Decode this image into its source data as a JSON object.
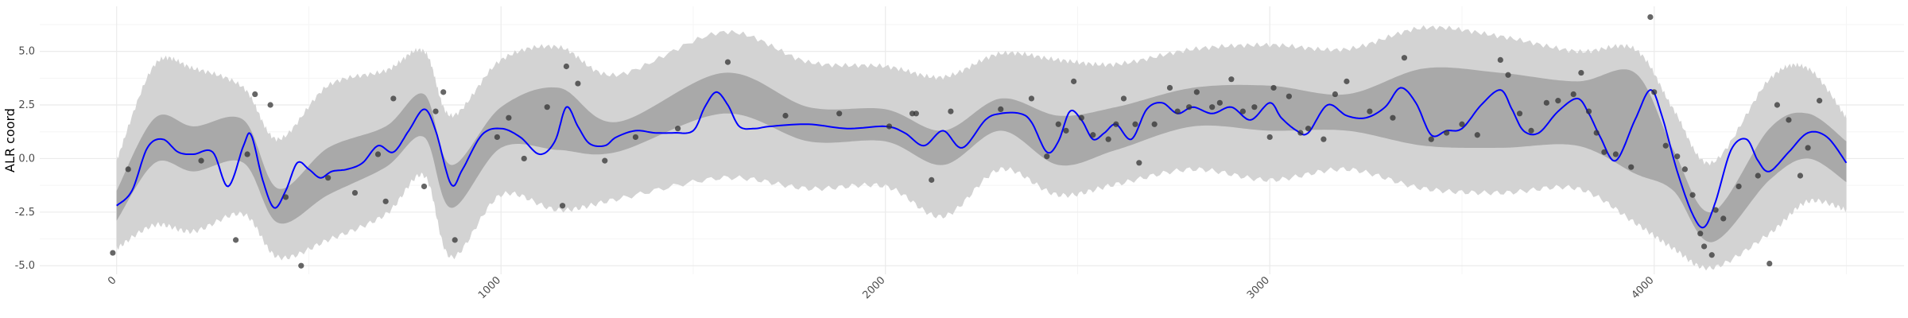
{
  "chart_data": {
    "type": "line",
    "title": "",
    "xlabel": "",
    "ylabel": "ALR coord",
    "xlim": [
      -200,
      4650
    ],
    "ylim": [
      -5.4,
      7.1
    ],
    "x_ticks": [
      0,
      1000,
      2000,
      3000,
      4000
    ],
    "y_ticks": [
      -5.0,
      -2.5,
      0.0,
      2.5,
      5.0
    ],
    "y_tick_labels": [
      "-5.0",
      "-2.5",
      "0.0",
      "2.5",
      "5.0"
    ],
    "grid": true,
    "legend": "none",
    "colors": {
      "mean": "#0000ff",
      "inner_band": "#a9a9a9",
      "outer_band": "#d3d3d3",
      "points": "#333333",
      "grid_major": "#ebebeb",
      "grid_minor": "#f5f5f5"
    },
    "series": [
      {
        "kind": "mean",
        "x": [
          0,
          40,
          80,
          120,
          160,
          200,
          250,
          290,
          330,
          350,
          380,
          410,
          440,
          470,
          500,
          530,
          560,
          600,
          640,
          680,
          720,
          760,
          800,
          830,
          870,
          900,
          950,
          1000,
          1050,
          1100,
          1140,
          1170,
          1200,
          1230,
          1270,
          1300,
          1350,
          1400,
          1450,
          1500,
          1530,
          1560,
          1590,
          1620,
          1660,
          1700,
          1800,
          1900,
          2000,
          2050,
          2100,
          2150,
          2200,
          2260,
          2300,
          2350,
          2380,
          2420,
          2450,
          2480,
          2510,
          2540,
          2570,
          2600,
          2640,
          2680,
          2720,
          2760,
          2800,
          2850,
          2900,
          2950,
          3000,
          3030,
          3070,
          3100,
          3150,
          3200,
          3250,
          3300,
          3340,
          3380,
          3420,
          3460,
          3500,
          3550,
          3600,
          3630,
          3660,
          3700,
          3750,
          3800,
          3830,
          3860,
          3900,
          3950,
          3990,
          4020,
          4060,
          4100,
          4130,
          4160,
          4200,
          4240,
          4270,
          4300,
          4350,
          4400,
          4450,
          4500
        ],
        "y": [
          -2.2,
          -1.5,
          0.5,
          0.9,
          0.3,
          0.2,
          0.3,
          -1.3,
          0.6,
          1.1,
          -1.0,
          -2.3,
          -1.5,
          -0.2,
          -0.5,
          -0.9,
          -0.6,
          -0.5,
          -0.2,
          0.6,
          0.3,
          1.3,
          2.3,
          1.3,
          -1.2,
          -0.5,
          1.1,
          1.4,
          1.0,
          0.2,
          0.8,
          2.4,
          1.5,
          0.7,
          0.6,
          1.0,
          1.3,
          1.2,
          1.2,
          1.3,
          2.4,
          3.1,
          2.5,
          1.5,
          1.4,
          1.5,
          1.6,
          1.4,
          1.5,
          1.2,
          0.6,
          1.3,
          0.5,
          1.8,
          2.1,
          2.1,
          1.7,
          0.3,
          0.8,
          2.2,
          1.8,
          0.9,
          1.2,
          1.6,
          0.9,
          2.3,
          2.6,
          2.1,
          2.4,
          2.1,
          2.4,
          1.8,
          2.6,
          1.9,
          1.3,
          1.2,
          2.5,
          2.0,
          1.9,
          2.4,
          3.3,
          2.6,
          1.1,
          1.3,
          1.4,
          2.5,
          3.2,
          2.3,
          1.3,
          1.2,
          2.2,
          2.8,
          2.1,
          1.0,
          -0.1,
          1.8,
          3.2,
          2.0,
          -0.6,
          -2.6,
          -3.2,
          -2.0,
          0.4,
          0.9,
          -0.1,
          -0.6,
          0.3,
          1.2,
          1.0,
          -0.2
        ]
      },
      {
        "kind": "inner_band",
        "x": [
          0,
          100,
          200,
          330,
          420,
          550,
          700,
          800,
          870,
          1000,
          1150,
          1300,
          1580,
          1800,
          2000,
          2150,
          2300,
          2450,
          2600,
          2800,
          3000,
          3200,
          3400,
          3600,
          3800,
          3950,
          4050,
          4150,
          4300,
          4400,
          4500
        ],
        "lower": [
          -2.9,
          -0.2,
          -0.6,
          -0.2,
          -3.0,
          -1.7,
          -0.4,
          1.0,
          -2.3,
          0.5,
          0.4,
          0.3,
          2.1,
          0.8,
          0.8,
          -0.3,
          1.3,
          -0.3,
          0.4,
          1.5,
          1.3,
          1.3,
          0.6,
          0.5,
          0.6,
          -0.7,
          -1.5,
          -3.9,
          -1.0,
          0.0,
          -1.1
        ],
        "upper": [
          -1.5,
          1.9,
          1.5,
          1.8,
          -1.4,
          0.5,
          1.5,
          3.0,
          -0.3,
          2.4,
          3.3,
          1.7,
          4.0,
          2.4,
          2.3,
          1.3,
          2.8,
          2.0,
          2.4,
          3.3,
          3.4,
          3.0,
          4.2,
          4.0,
          3.6,
          4.0,
          0.4,
          -2.5,
          1.4,
          2.1,
          0.8
        ]
      },
      {
        "kind": "outer_band",
        "x": [
          0,
          100,
          200,
          330,
          420,
          550,
          700,
          800,
          870,
          1000,
          1150,
          1300,
          1580,
          1800,
          2000,
          2150,
          2300,
          2450,
          2600,
          2800,
          3000,
          3200,
          3400,
          3600,
          3800,
          3950,
          4050,
          4150,
          4300,
          4400,
          4500
        ],
        "lower": [
          -4.2,
          -3.1,
          -3.4,
          -2.6,
          -4.6,
          -3.8,
          -2.6,
          -0.8,
          -4.6,
          -1.7,
          -2.4,
          -1.9,
          -0.9,
          -1.4,
          -1.3,
          -2.7,
          -0.5,
          -1.7,
          -1.2,
          -0.5,
          -1.0,
          -0.5,
          -1.4,
          -1.6,
          -1.4,
          -3.0,
          -4.2,
          -5.1,
          -3.5,
          -2.0,
          -2.4
        ],
        "upper": [
          -0.1,
          4.4,
          4.2,
          3.3,
          0.9,
          3.4,
          4.1,
          5.0,
          2.0,
          4.6,
          5.2,
          3.9,
          5.9,
          4.5,
          4.3,
          3.8,
          4.9,
          4.6,
          4.4,
          5.1,
          5.3,
          5.1,
          6.1,
          5.7,
          5.0,
          5.1,
          2.3,
          -0.2,
          3.7,
          4.2,
          1.9
        ]
      },
      {
        "kind": "points",
        "x": [
          -10,
          30,
          220,
          310,
          340,
          360,
          400,
          440,
          480,
          550,
          620,
          680,
          700,
          720,
          800,
          830,
          850,
          880,
          990,
          1020,
          1060,
          1120,
          1160,
          1170,
          1200,
          1270,
          1350,
          1460,
          1590,
          1740,
          1880,
          2010,
          2070,
          2080,
          2120,
          2170,
          2300,
          2380,
          2420,
          2450,
          2470,
          2490,
          2510,
          2540,
          2580,
          2600,
          2620,
          2650,
          2660,
          2700,
          2740,
          2760,
          2790,
          2810,
          2850,
          2870,
          2900,
          2930,
          2960,
          3000,
          3010,
          3050,
          3080,
          3100,
          3140,
          3170,
          3200,
          3260,
          3320,
          3350,
          3420,
          3460,
          3500,
          3540,
          3600,
          3620,
          3650,
          3680,
          3720,
          3750,
          3790,
          3810,
          3830,
          3850,
          3870,
          3900,
          3940,
          3990,
          4000,
          4030,
          4060,
          4080,
          4100,
          4120,
          4130,
          4150,
          4160,
          4180,
          4220,
          4270,
          4300,
          4320,
          4350,
          4380,
          4400,
          4430
        ],
        "y": [
          -4.4,
          -0.5,
          -0.1,
          -3.8,
          0.2,
          3.0,
          2.5,
          -1.8,
          -5.0,
          -0.9,
          -1.6,
          0.2,
          -2.0,
          2.8,
          -1.3,
          2.2,
          3.1,
          -3.8,
          1.0,
          1.9,
          0.0,
          2.4,
          -2.2,
          4.3,
          3.5,
          -0.1,
          1.0,
          1.4,
          4.5,
          2.0,
          2.1,
          1.5,
          2.1,
          2.1,
          -1.0,
          2.2,
          2.3,
          2.8,
          0.1,
          1.6,
          1.3,
          3.6,
          1.9,
          1.1,
          0.9,
          1.6,
          2.8,
          1.6,
          -0.2,
          1.6,
          3.3,
          2.2,
          2.4,
          3.1,
          2.4,
          2.6,
          3.7,
          2.2,
          2.4,
          1.0,
          3.3,
          2.9,
          1.2,
          1.4,
          0.9,
          3.0,
          3.6,
          2.2,
          1.9,
          4.7,
          0.9,
          1.2,
          1.6,
          1.1,
          4.6,
          3.9,
          2.1,
          1.3,
          2.6,
          2.7,
          3.0,
          4.0,
          2.2,
          1.2,
          0.3,
          0.2,
          -0.4,
          6.6,
          3.1,
          0.6,
          0.1,
          -0.5,
          -1.7,
          -3.5,
          -4.1,
          -4.5,
          -2.4,
          -2.8,
          -1.3,
          -0.8,
          -4.9,
          2.5,
          1.8,
          -0.8,
          0.5,
          2.7
        ]
      }
    ]
  }
}
